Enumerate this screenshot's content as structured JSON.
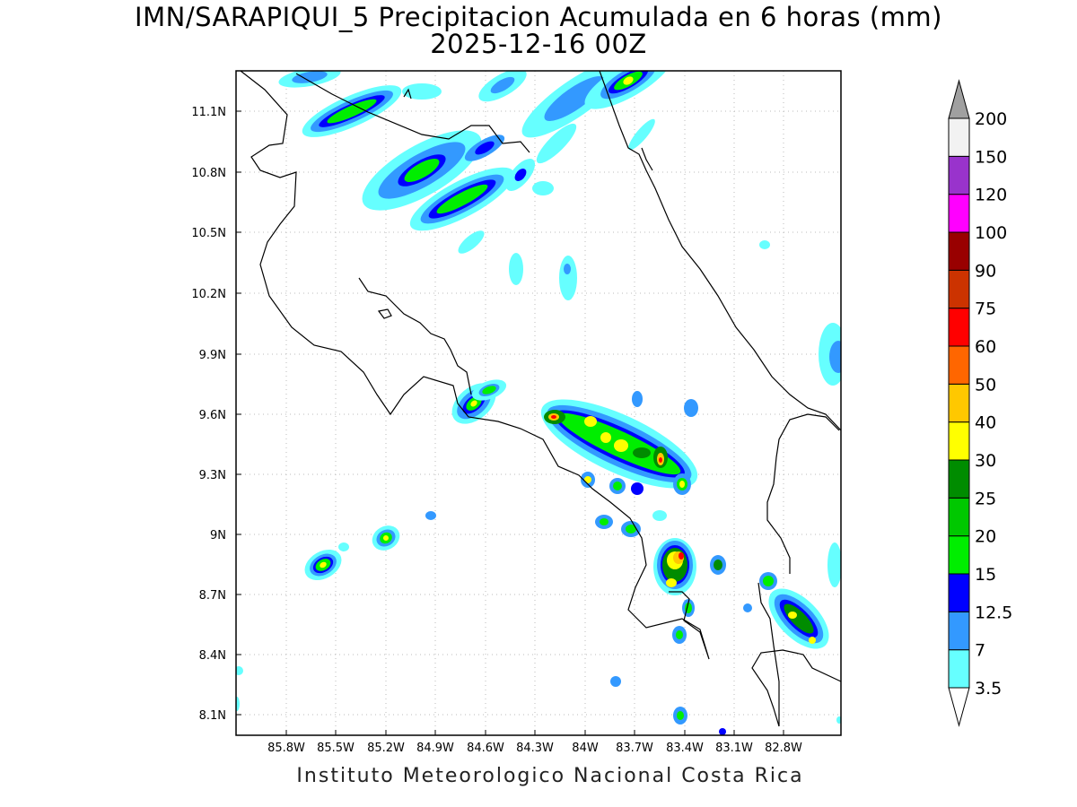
{
  "title_line1": "IMN/SARAPIQUI_5 Precipitacion Acumulada en 6 horas (mm)",
  "title_line2": "2025-12-16 00Z",
  "credit": "Instituto Meteorologico Nacional Costa Rica",
  "map": {
    "lon_range": [
      -86.06,
      -82.43
    ],
    "lat_range": [
      8.01,
      11.34
    ],
    "lon_ticks": [
      "85.8W",
      "85.5W",
      "85.2W",
      "84.9W",
      "84.6W",
      "84.3W",
      "84W",
      "83.7W",
      "83.4W",
      "83.1W",
      "82.8W"
    ],
    "lat_ticks": [
      "8.1N",
      "8.4N",
      "8.7N",
      "9N",
      "9.3N",
      "9.6N",
      "9.9N",
      "10.2N",
      "10.5N",
      "10.8N",
      "11.1N"
    ],
    "gridlines": "dotted"
  },
  "colorbar": {
    "labels": [
      "3.5",
      "7",
      "12.5",
      "15",
      "20",
      "25",
      "30",
      "40",
      "50",
      "60",
      "75",
      "90",
      "100",
      "120",
      "150",
      "200"
    ],
    "colors": [
      "#66ffff",
      "#3399ff",
      "#0000ff",
      "#00ee00",
      "#00c800",
      "#008c00",
      "#ffff00",
      "#ffc800",
      "#ff6600",
      "#ff0000",
      "#cc3300",
      "#990000",
      "#ff00ff",
      "#9933cc",
      "#f2f2f2",
      "#a0a0a0"
    ]
  }
}
